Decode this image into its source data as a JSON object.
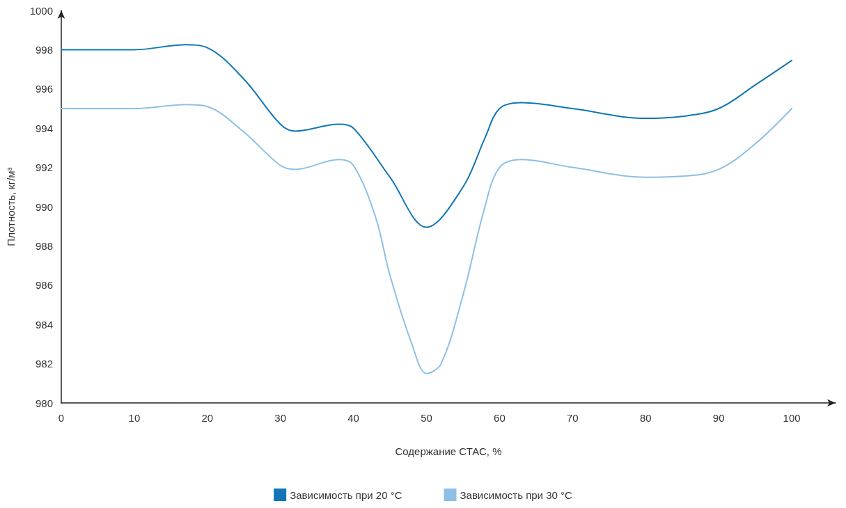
{
  "chart_data": {
    "type": "line",
    "xlabel": "Содержание СТАС, %",
    "ylabel": "Плотность, кг/м³",
    "xlim": [
      0,
      106
    ],
    "xticks": [
      0,
      10,
      20,
      30,
      40,
      50,
      60,
      70,
      80,
      90,
      100
    ],
    "ylim": [
      980,
      1000
    ],
    "yticks": [
      980,
      982,
      984,
      986,
      988,
      990,
      992,
      994,
      996,
      998,
      1000
    ],
    "grid": false,
    "legend": "bottom",
    "marker": "none",
    "line_style": "solid",
    "series": [
      {
        "name": "Зависимость при 20 °C",
        "color": "#1276b4",
        "x": [
          0,
          10,
          17,
          20,
          25,
          30,
          32,
          38,
          40,
          45,
          50,
          55,
          58,
          60,
          63,
          70,
          80,
          85,
          90,
          95,
          100
        ],
        "values": [
          998,
          998,
          998.25,
          998.1,
          996.5,
          994.2,
          993.85,
          994.2,
          994,
          991.5,
          988.95,
          991,
          993.5,
          995,
          995.3,
          995,
          994.5,
          994.6,
          995,
          996.2,
          997.45
        ]
      },
      {
        "name": "Зависимость при 30 °C",
        "color": "#8cc0e6",
        "x": [
          0,
          10,
          17,
          20,
          25,
          30,
          32,
          38,
          40,
          43,
          45,
          48,
          50,
          52,
          55,
          58,
          60,
          63,
          70,
          80,
          85,
          90,
          95,
          100
        ],
        "values": [
          995,
          995,
          995.2,
          995.1,
          993.8,
          992.1,
          991.9,
          992.4,
          992.1,
          989.5,
          986.5,
          983,
          981.5,
          982,
          985.5,
          990,
          992,
          992.4,
          992,
          991.5,
          991.55,
          991.9,
          993.2,
          995
        ]
      }
    ]
  }
}
